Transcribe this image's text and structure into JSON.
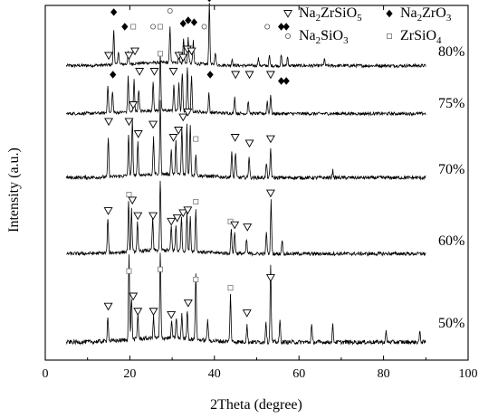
{
  "chart_data": {
    "type": "line",
    "xlabel": "2Theta (degree)",
    "ylabel": "Intensity (a.u.)",
    "xlim": [
      0,
      100
    ],
    "x_ticks": [
      0,
      20,
      40,
      60,
      80,
      100
    ],
    "y_ticks_shown": false,
    "legend": {
      "placement": "top-right",
      "entries": [
        {
          "symbol": "triangle-down-open",
          "label": "Na2ZrSiO5",
          "parts": [
            [
              "Na",
              ""
            ],
            [
              "2",
              "sub"
            ],
            [
              "ZrSiO",
              ""
            ],
            [
              "5",
              "sub"
            ]
          ]
        },
        {
          "symbol": "diamond-filled",
          "label": "Na2ZrO3",
          "parts": [
            [
              "Na",
              ""
            ],
            [
              "2",
              "sub"
            ],
            [
              "ZrO",
              ""
            ],
            [
              "3",
              "sub"
            ]
          ]
        },
        {
          "symbol": "circle-open",
          "label": "Na2SiO3",
          "parts": [
            [
              "Na",
              ""
            ],
            [
              "2",
              "sub"
            ],
            [
              "SiO",
              ""
            ],
            [
              "3",
              "sub"
            ]
          ]
        },
        {
          "symbol": "square-open",
          "label": "ZrSiO4",
          "parts": [
            [
              "ZrSiO",
              ""
            ],
            [
              "4",
              "sub"
            ]
          ]
        }
      ]
    },
    "series": [
      {
        "name": "80%",
        "peaks": [
          [
            16.2,
            0.55
          ],
          [
            17.3,
            0.22
          ],
          [
            19.6,
            0.18
          ],
          [
            29.5,
            0.55
          ],
          [
            31.6,
            0.18
          ],
          [
            32.7,
            0.38
          ],
          [
            33.8,
            0.4
          ],
          [
            35.0,
            0.35
          ],
          [
            38.8,
            0.95
          ],
          [
            40.2,
            0.2
          ],
          [
            44.2,
            0.1
          ],
          [
            50.4,
            0.12
          ],
          [
            53.0,
            0.15
          ],
          [
            55.8,
            0.16
          ],
          [
            57.3,
            0.14
          ],
          [
            66.0,
            0.1
          ]
        ],
        "markers": [
          {
            "type": "diamond-filled",
            "x": 16.2,
            "level": 0.78
          },
          {
            "type": "diamond-filled",
            "x": 18.8,
            "level": 0.55
          },
          {
            "type": "square-open",
            "x": 20.8,
            "level": 0.55
          },
          {
            "type": "circle-open",
            "x": 25.5,
            "level": 0.55
          },
          {
            "type": "square-open",
            "x": 27.2,
            "level": 0.55
          },
          {
            "type": "circle-open",
            "x": 29.5,
            "level": 0.8
          },
          {
            "type": "diamond-filled",
            "x": 32.6,
            "level": 0.6
          },
          {
            "type": "diamond-filled",
            "x": 33.8,
            "level": 0.65
          },
          {
            "type": "diamond-filled",
            "x": 35.2,
            "level": 0.62
          },
          {
            "type": "circle-open",
            "x": 37.6,
            "level": 0.55
          },
          {
            "type": "diamond-filled",
            "x": 38.8,
            "level": 1.0
          },
          {
            "type": "circle-open",
            "x": 52.5,
            "level": 0.55
          },
          {
            "type": "diamond-filled",
            "x": 55.8,
            "level": 0.55
          },
          {
            "type": "diamond-filled",
            "x": 57.0,
            "level": 0.55
          },
          {
            "type": "circle-open",
            "x": 66.0,
            "level": 0.45
          }
        ]
      },
      {
        "name": "75%",
        "peaks": [
          [
            14.8,
            0.45
          ],
          [
            15.9,
            0.35
          ],
          [
            19.6,
            0.55
          ],
          [
            21.0,
            0.5
          ],
          [
            22.1,
            0.35
          ],
          [
            25.5,
            0.45
          ],
          [
            27.2,
            0.9
          ],
          [
            30.4,
            0.4
          ],
          [
            31.6,
            0.45
          ],
          [
            32.4,
            0.6
          ],
          [
            33.6,
            0.7
          ],
          [
            34.6,
            0.55
          ],
          [
            38.7,
            0.3
          ],
          [
            44.8,
            0.25
          ],
          [
            48.0,
            0.2
          ],
          [
            52.5,
            0.2
          ],
          [
            53.3,
            0.3
          ]
        ],
        "markers": [
          {
            "type": "triangle-down-open",
            "x": 15.0,
            "level": 0.85
          },
          {
            "type": "diamond-filled",
            "x": 16.0,
            "level": 0.55
          },
          {
            "type": "triangle-down-open",
            "x": 19.8,
            "level": 0.85
          },
          {
            "type": "triangle-down-open",
            "x": 21.2,
            "level": 0.92
          },
          {
            "type": "triangle-down-open",
            "x": 22.3,
            "level": 0.6
          },
          {
            "type": "triangle-down-open",
            "x": 25.8,
            "level": 0.6
          },
          {
            "type": "square-open",
            "x": 27.2,
            "level": 0.88
          },
          {
            "type": "triangle-down-open",
            "x": 30.3,
            "level": 0.6
          },
          {
            "type": "triangle-down-open",
            "x": 31.6,
            "level": 0.85
          },
          {
            "type": "triangle-down-open",
            "x": 32.6,
            "level": 0.82
          },
          {
            "type": "triangle-down-open",
            "x": 33.6,
            "level": 0.95
          },
          {
            "type": "triangle-down-open",
            "x": 34.6,
            "level": 0.92
          },
          {
            "type": "diamond-filled",
            "x": 39.0,
            "level": 0.55
          },
          {
            "type": "triangle-down-open",
            "x": 45.0,
            "level": 0.55
          },
          {
            "type": "triangle-down-open",
            "x": 48.3,
            "level": 0.55
          },
          {
            "type": "triangle-down-open",
            "x": 53.3,
            "level": 0.55
          },
          {
            "type": "diamond-filled",
            "x": 55.8,
            "level": 0.45
          },
          {
            "type": "diamond-filled",
            "x": 57.0,
            "level": 0.45
          }
        ]
      },
      {
        "name": "70%",
        "peaks": [
          [
            14.9,
            0.55
          ],
          [
            19.7,
            0.55
          ],
          [
            20.6,
            0.75
          ],
          [
            21.9,
            0.45
          ],
          [
            25.6,
            0.5
          ],
          [
            27.2,
            1.0
          ],
          [
            29.8,
            0.35
          ],
          [
            30.9,
            0.45
          ],
          [
            32.3,
            0.65
          ],
          [
            33.5,
            0.7
          ],
          [
            34.3,
            0.7
          ],
          [
            35.6,
            0.3
          ],
          [
            44.1,
            0.35
          ],
          [
            45.0,
            0.35
          ],
          [
            48.2,
            0.3
          ],
          [
            52.3,
            0.2
          ],
          [
            53.3,
            0.4
          ],
          [
            68.0,
            0.1
          ]
        ],
        "markers": [
          {
            "type": "triangle-down-open",
            "x": 15.0,
            "level": 0.72
          },
          {
            "type": "triangle-down-open",
            "x": 19.8,
            "level": 0.72
          },
          {
            "type": "triangle-down-open",
            "x": 20.8,
            "level": 0.95
          },
          {
            "type": "triangle-down-open",
            "x": 22.0,
            "level": 0.55
          },
          {
            "type": "triangle-down-open",
            "x": 25.5,
            "level": 0.68
          },
          {
            "type": "triangle-down-open",
            "x": 30.3,
            "level": 0.5
          },
          {
            "type": "triangle-down-open",
            "x": 31.5,
            "level": 0.6
          },
          {
            "type": "triangle-down-open",
            "x": 32.6,
            "level": 0.78
          },
          {
            "type": "triangle-down-open",
            "x": 33.7,
            "level": 0.85
          },
          {
            "type": "square-open",
            "x": 35.6,
            "level": 0.48
          },
          {
            "type": "triangle-down-open",
            "x": 44.9,
            "level": 0.5
          },
          {
            "type": "triangle-down-open",
            "x": 48.3,
            "level": 0.42
          },
          {
            "type": "triangle-down-open",
            "x": 53.3,
            "level": 0.48
          }
        ]
      },
      {
        "name": "60%",
        "peaks": [
          [
            14.8,
            0.5
          ],
          [
            19.7,
            0.7
          ],
          [
            20.4,
            0.6
          ],
          [
            21.8,
            0.4
          ],
          [
            25.4,
            0.45
          ],
          [
            27.2,
            1.0
          ],
          [
            29.8,
            0.35
          ],
          [
            30.9,
            0.35
          ],
          [
            32.2,
            0.5
          ],
          [
            33.5,
            0.55
          ],
          [
            34.3,
            0.5
          ],
          [
            35.6,
            0.6
          ],
          [
            44.0,
            0.35
          ],
          [
            44.8,
            0.3
          ],
          [
            47.6,
            0.2
          ],
          [
            52.3,
            0.3
          ],
          [
            53.4,
            0.75
          ],
          [
            56.0,
            0.2
          ]
        ],
        "markers": [
          {
            "type": "triangle-down-open",
            "x": 14.9,
            "level": 0.55
          },
          {
            "type": "square-open",
            "x": 19.8,
            "level": 0.78
          },
          {
            "type": "triangle-down-open",
            "x": 20.6,
            "level": 0.7
          },
          {
            "type": "triangle-down-open",
            "x": 21.9,
            "level": 0.48
          },
          {
            "type": "triangle-down-open",
            "x": 25.5,
            "level": 0.48
          },
          {
            "type": "triangle-down-open",
            "x": 29.8,
            "level": 0.4
          },
          {
            "type": "triangle-down-open",
            "x": 31.2,
            "level": 0.45
          },
          {
            "type": "triangle-down-open",
            "x": 32.6,
            "level": 0.52
          },
          {
            "type": "triangle-down-open",
            "x": 33.7,
            "level": 0.56
          },
          {
            "type": "square-open",
            "x": 35.6,
            "level": 0.68
          },
          {
            "type": "square-open",
            "x": 43.8,
            "level": 0.4
          },
          {
            "type": "triangle-down-open",
            "x": 44.8,
            "level": 0.35
          },
          {
            "type": "triangle-down-open",
            "x": 47.8,
            "level": 0.32
          },
          {
            "type": "triangle-down-open",
            "x": 53.3,
            "level": 0.8
          }
        ]
      },
      {
        "name": "50%",
        "peaks": [
          [
            14.8,
            0.3
          ],
          [
            19.8,
            1.0
          ],
          [
            20.4,
            0.5
          ],
          [
            21.9,
            0.3
          ],
          [
            25.6,
            0.25
          ],
          [
            27.2,
            1.0
          ],
          [
            29.9,
            0.2
          ],
          [
            31.0,
            0.25
          ],
          [
            32.3,
            0.3
          ],
          [
            33.6,
            0.35
          ],
          [
            35.6,
            0.8
          ],
          [
            38.4,
            0.25
          ],
          [
            43.8,
            0.55
          ],
          [
            47.7,
            0.2
          ],
          [
            52.2,
            0.25
          ],
          [
            53.3,
            0.9
          ],
          [
            55.5,
            0.25
          ],
          [
            63.0,
            0.2
          ],
          [
            68.0,
            0.2
          ],
          [
            80.6,
            0.12
          ],
          [
            88.6,
            0.12
          ]
        ],
        "markers": [
          {
            "type": "triangle-down-open",
            "x": 14.9,
            "level": 0.38
          },
          {
            "type": "square-open",
            "x": 19.8,
            "level": 0.8
          },
          {
            "type": "triangle-down-open",
            "x": 20.8,
            "level": 0.5
          },
          {
            "type": "triangle-down-open",
            "x": 21.9,
            "level": 0.32
          },
          {
            "type": "triangle-down-open",
            "x": 25.6,
            "level": 0.32
          },
          {
            "type": "square-open",
            "x": 27.2,
            "level": 0.82
          },
          {
            "type": "triangle-down-open",
            "x": 29.8,
            "level": 0.28
          },
          {
            "type": "triangle-down-open",
            "x": 33.8,
            "level": 0.42
          },
          {
            "type": "square-open",
            "x": 35.6,
            "level": 0.7
          },
          {
            "type": "square-open",
            "x": 43.8,
            "level": 0.6
          },
          {
            "type": "triangle-down-open",
            "x": 47.7,
            "level": 0.3
          },
          {
            "type": "triangle-down-open",
            "x": 53.3,
            "level": 0.72
          }
        ]
      }
    ]
  }
}
